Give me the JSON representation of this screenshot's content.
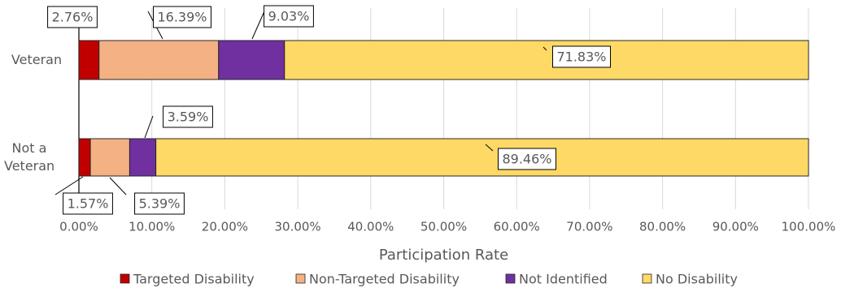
{
  "chart_data": {
    "type": "stacked-bar-horizontal",
    "x_label": "Participation Rate",
    "categories": [
      "Veteran",
      "Not a Veteran"
    ],
    "series": [
      {
        "name": "Targeted Disability",
        "color": "#c00000",
        "values": [
          2.76,
          1.57
        ],
        "value_labels": [
          "2.76%",
          "1.57%"
        ]
      },
      {
        "name": "Non-Targeted Disability",
        "color": "#f4b183",
        "values": [
          16.39,
          5.39
        ],
        "value_labels": [
          "16.39%",
          "5.39%"
        ]
      },
      {
        "name": "Not Identified",
        "color": "#7030a0",
        "values": [
          9.03,
          3.59
        ],
        "value_labels": [
          "9.03%",
          "3.59%"
        ]
      },
      {
        "name": "No Disability",
        "color": "#ffd966",
        "values": [
          71.83,
          89.46
        ],
        "value_labels": [
          "71.83%",
          "89.46%"
        ]
      }
    ],
    "xlim": [
      0,
      100
    ],
    "xticks": [
      {
        "value": 0,
        "label": "0.00%"
      },
      {
        "value": 10,
        "label": "10.00%"
      },
      {
        "value": 20,
        "label": "20.00%"
      },
      {
        "value": 30,
        "label": "30.00%"
      },
      {
        "value": 40,
        "label": "40.00%"
      },
      {
        "value": 50,
        "label": "50.00%"
      },
      {
        "value": 60,
        "label": "60.00%"
      },
      {
        "value": 70,
        "label": "70.00%"
      },
      {
        "value": 80,
        "label": "80.00%"
      },
      {
        "value": 90,
        "label": "90.00%"
      },
      {
        "value": 100,
        "label": "100.00%"
      }
    ],
    "grid": true,
    "legend": "bottom"
  }
}
